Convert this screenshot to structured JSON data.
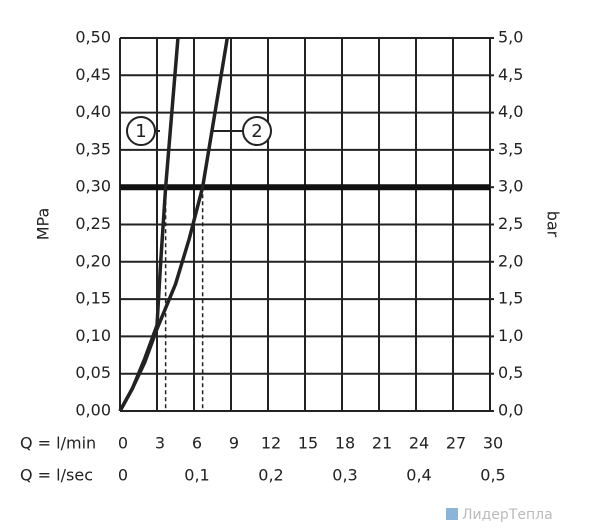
{
  "chart_data": {
    "type": "line",
    "y_label": "MPa",
    "y2_label": "bar",
    "x_label": "Q = l/min",
    "x2_label": "Q = l/sec",
    "watermark": "ЛидерТепла",
    "xlim": [
      0,
      30
    ],
    "xticks": [
      0,
      3,
      6,
      9,
      12,
      15,
      18,
      21,
      24,
      27,
      30
    ],
    "x2lim": [
      0,
      0.5
    ],
    "x2ticks": [
      0,
      {
        "value": 0.1,
        "label": "0,1"
      },
      {
        "value": 0.2,
        "label": "0,2"
      },
      {
        "value": 0.3,
        "label": "0,3"
      },
      {
        "value": 0.4,
        "label": "0,4"
      },
      {
        "value": 0.5,
        "label": "0,5"
      }
    ],
    "ylim": [
      0,
      0.5
    ],
    "yticks": [
      {
        "value": 0,
        "label": "0,00"
      },
      {
        "value": 0.05,
        "label": "0,05"
      },
      {
        "value": 0.1,
        "label": "0,10"
      },
      {
        "value": 0.15,
        "label": "0,15"
      },
      {
        "value": 0.2,
        "label": "0,20"
      },
      {
        "value": 0.25,
        "label": "0,25"
      },
      {
        "value": 0.3,
        "label": "0,30"
      },
      {
        "value": 0.35,
        "label": "0,35"
      },
      {
        "value": 0.4,
        "label": "0,40"
      },
      {
        "value": 0.45,
        "label": "0,45"
      },
      {
        "value": 0.5,
        "label": "0,50"
      }
    ],
    "y2lim": [
      0,
      5
    ],
    "y2ticks": [
      {
        "value": 0,
        "label": "0,0"
      },
      {
        "value": 0.5,
        "label": "0,5"
      },
      {
        "value": 1,
        "label": "1,0"
      },
      {
        "value": 1.5,
        "label": "1,5"
      },
      {
        "value": 2,
        "label": "2,0"
      },
      {
        "value": 2.5,
        "label": "2,5"
      },
      {
        "value": 3,
        "label": "3,0"
      },
      {
        "value": 3.5,
        "label": "3,5"
      },
      {
        "value": 4,
        "label": "4,0"
      },
      {
        "value": 4.5,
        "label": "4,5"
      },
      {
        "value": 5,
        "label": "5,0"
      }
    ],
    "grid": true,
    "reference_y": 0.3,
    "drop_lines_x": [
      3.7,
      6.7
    ],
    "series": [
      {
        "name": "1",
        "color": "#222222",
        "x": [
          0,
          1,
          2,
          3,
          3.3,
          3.7,
          4.2,
          4.7
        ],
        "values": [
          0,
          0.03,
          0.07,
          0.115,
          0.2,
          0.3,
          0.4,
          0.5
        ]
      },
      {
        "name": "2",
        "color": "#222222",
        "x": [
          0,
          1,
          2,
          3,
          4.5,
          5.6,
          6.7,
          7.7,
          8.7
        ],
        "values": [
          0,
          0.03,
          0.065,
          0.11,
          0.17,
          0.23,
          0.3,
          0.4,
          0.5
        ]
      }
    ]
  }
}
